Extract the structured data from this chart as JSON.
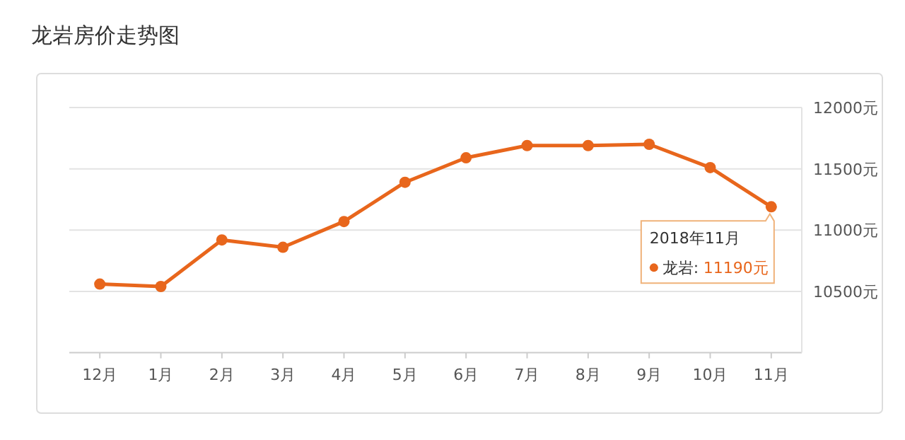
{
  "chart_data": {
    "type": "line",
    "title": "龙岩房价走势图",
    "categories": [
      "12月",
      "1月",
      "2月",
      "3月",
      "4月",
      "5月",
      "6月",
      "7月",
      "8月",
      "9月",
      "10月",
      "11月"
    ],
    "series": [
      {
        "name": "龙岩:",
        "color": "#e8661c",
        "values": [
          10560,
          10540,
          10920,
          10860,
          11070,
          11390,
          11590,
          11690,
          11690,
          11700,
          11510,
          11190
        ],
        "value_labels": [
          null,
          null,
          null,
          null,
          null,
          null,
          null,
          null,
          null,
          null,
          null,
          "11190元"
        ]
      }
    ],
    "annotations": [
      {
        "text": "2018年11月",
        "x": "11月",
        "y": 11190
      }
    ],
    "ylim": [
      10000,
      12000
    ],
    "yticks": [
      {
        "value": 10500,
        "label": "10500元"
      },
      {
        "value": 11000,
        "label": "11000元"
      },
      {
        "value": 11500,
        "label": "11500元"
      },
      {
        "value": 12000,
        "label": "12000元"
      }
    ],
    "grid": "y",
    "marker": "circle",
    "line_style": "solid"
  }
}
